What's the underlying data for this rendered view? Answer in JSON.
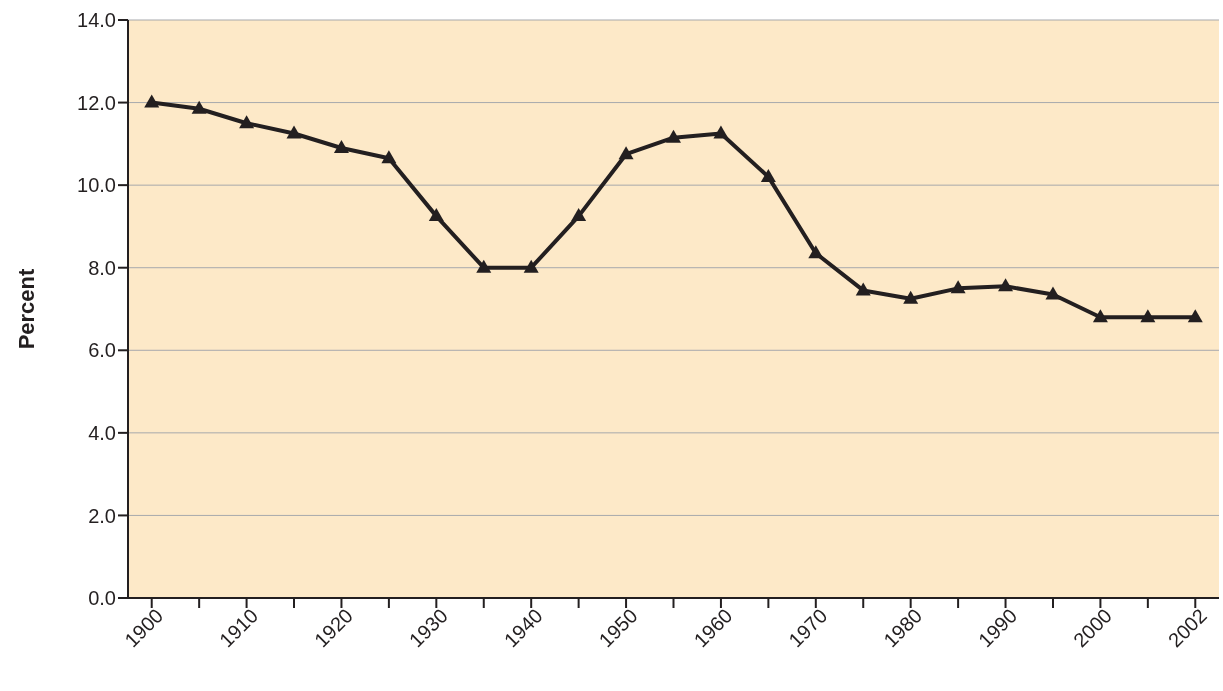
{
  "chart_data": {
    "type": "line",
    "ylabel": "Percent",
    "categories": [
      "1900",
      null,
      "1910",
      null,
      "1920",
      null,
      "1930",
      null,
      "1940",
      null,
      "1950",
      null,
      "1960",
      null,
      "1970",
      null,
      "1980",
      null,
      "1990",
      null,
      "2000",
      null,
      "2002"
    ],
    "series": [
      {
        "color": "#231f20",
        "values": [
          12.0,
          11.85,
          11.5,
          11.25,
          10.9,
          10.65,
          9.25,
          8.0,
          8.0,
          9.25,
          10.75,
          11.15,
          11.25,
          10.2,
          8.35,
          7.45,
          7.25,
          7.5,
          7.55,
          7.35,
          6.8,
          6.8,
          6.8
        ]
      }
    ],
    "ylim": [
      0,
      14
    ],
    "yticks": [
      {
        "value": 0,
        "label": "0.0"
      },
      {
        "value": 2,
        "label": "2.0"
      },
      {
        "value": 4,
        "label": "4.0"
      },
      {
        "value": 6,
        "label": "6.0"
      },
      {
        "value": 8,
        "label": "8.0"
      },
      {
        "value": 10,
        "label": "10.0"
      },
      {
        "value": 12,
        "label": "12.0"
      },
      {
        "value": 14,
        "label": "14.0"
      }
    ],
    "grid": "y",
    "marker": "triangle",
    "line_style": "solid"
  }
}
